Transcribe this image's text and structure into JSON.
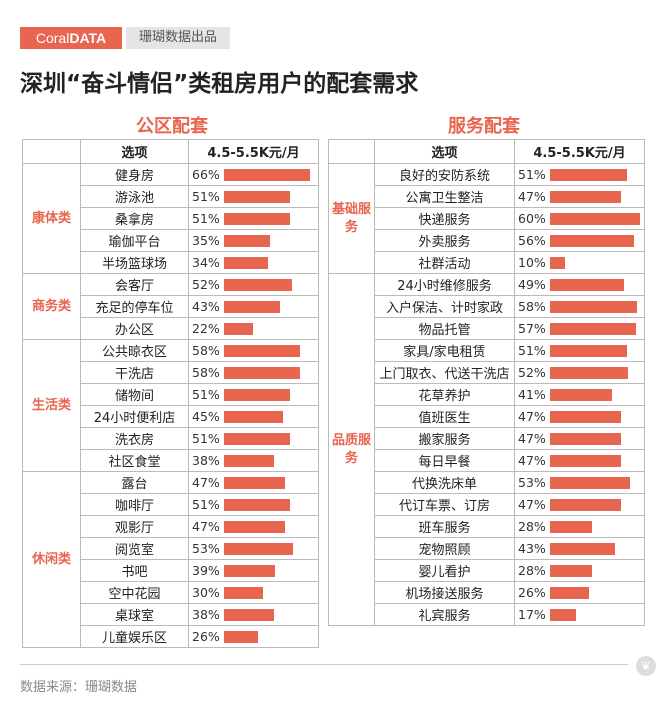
{
  "header": {
    "logo_plain": "Coral",
    "logo_bold": "DATA",
    "byline": "珊瑚数据出品",
    "title": "深圳“奋斗情侣”类租房用户的配套需求"
  },
  "footer": {
    "source": "数据来源：珊瑚数据"
  },
  "colors": {
    "accent": "#e8654f"
  },
  "chart_data": [
    {
      "type": "table",
      "title": "公区配套",
      "columns": [
        "选项",
        "4.5-5.5K元/月"
      ],
      "groups": [
        {
          "name": "康体类",
          "items": [
            {
              "label": "健身房",
              "value": 66,
              "display": "66%"
            },
            {
              "label": "游泳池",
              "value": 51,
              "display": "51%"
            },
            {
              "label": "桑拿房",
              "value": 51,
              "display": "51%"
            },
            {
              "label": "瑜伽平台",
              "value": 35,
              "display": "35%"
            },
            {
              "label": "半场篮球场",
              "value": 34,
              "display": "34%"
            }
          ]
        },
        {
          "name": "商务类",
          "items": [
            {
              "label": "会客厅",
              "value": 52,
              "display": "52%"
            },
            {
              "label": "充足的停车位",
              "value": 43,
              "display": "43%"
            },
            {
              "label": "办公区",
              "value": 22,
              "display": "22%"
            }
          ]
        },
        {
          "name": "生活类",
          "items": [
            {
              "label": "公共晾衣区",
              "value": 58,
              "display": "58%"
            },
            {
              "label": "干洗店",
              "value": 58,
              "display": "58%"
            },
            {
              "label": "储物间",
              "value": 51,
              "display": "51%"
            },
            {
              "label": "24小时便利店",
              "value": 45,
              "display": "45%"
            },
            {
              "label": "洗衣房",
              "value": 51,
              "display": "51%"
            },
            {
              "label": "社区食堂",
              "value": 38,
              "display": "38%"
            }
          ]
        },
        {
          "name": "休闲类",
          "items": [
            {
              "label": "露台",
              "value": 47,
              "display": "47%"
            },
            {
              "label": "咖啡厅",
              "value": 51,
              "display": "51%"
            },
            {
              "label": "观影厅",
              "value": 47,
              "display": "47%"
            },
            {
              "label": "阅览室",
              "value": 53,
              "display": "53%"
            },
            {
              "label": "书吧",
              "value": 39,
              "display": "39%"
            },
            {
              "label": "空中花园",
              "value": 30,
              "display": "30%"
            },
            {
              "label": "桌球室",
              "value": 38,
              "display": "38%"
            },
            {
              "label": "儿童娱乐区",
              "value": 26,
              "display": "26%"
            }
          ]
        }
      ]
    },
    {
      "type": "table",
      "title": "服务配套",
      "columns": [
        "选项",
        "4.5-5.5K元/月"
      ],
      "groups": [
        {
          "name": "基础服务",
          "items": [
            {
              "label": "良好的安防系统",
              "value": 51,
              "display": "51%"
            },
            {
              "label": "公寓卫生整洁",
              "value": 47,
              "display": "47%"
            },
            {
              "label": "快递服务",
              "value": 60,
              "display": "60%"
            },
            {
              "label": "外卖服务",
              "value": 56,
              "display": "56%"
            },
            {
              "label": "社群活动",
              "value": 10,
              "display": "10%"
            }
          ]
        },
        {
          "name": "品质服务",
          "items": [
            {
              "label": "24小时维修服务",
              "value": 49,
              "display": "49%"
            },
            {
              "label": "入户保洁、计时家政",
              "value": 58,
              "display": "58%"
            },
            {
              "label": "物品托管",
              "value": 57,
              "display": "57%"
            },
            {
              "label": "家具/家电租赁",
              "value": 51,
              "display": "51%"
            },
            {
              "label": "上门取衣、代送干洗店",
              "value": 52,
              "display": "52%"
            },
            {
              "label": "花草养护",
              "value": 41,
              "display": "41%"
            },
            {
              "label": "值班医生",
              "value": 47,
              "display": "47%"
            },
            {
              "label": "搬家服务",
              "value": 47,
              "display": "47%"
            },
            {
              "label": "每日早餐",
              "value": 47,
              "display": "47%"
            },
            {
              "label": "代换洗床单",
              "value": 53,
              "display": "53%"
            },
            {
              "label": "代订车票、订房",
              "value": 47,
              "display": "47%"
            },
            {
              "label": "班车服务",
              "value": 28,
              "display": "28%"
            },
            {
              "label": "宠物照顾",
              "value": 43,
              "display": "43%"
            },
            {
              "label": "婴儿看护",
              "value": 28,
              "display": "28%"
            },
            {
              "label": "机场接送服务",
              "value": 26,
              "display": "26%"
            },
            {
              "label": "礼宾服务",
              "value": 17,
              "display": "17%"
            }
          ]
        }
      ]
    }
  ]
}
